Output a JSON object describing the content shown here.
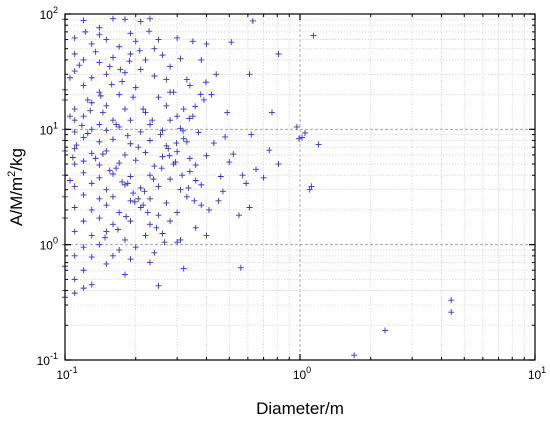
{
  "chart_data": {
    "type": "scatter",
    "title": "",
    "xlabel": "Diameter/m",
    "ylabel_parts": [
      "A/M/m",
      "2",
      "/kg"
    ],
    "xscale": "log",
    "yscale": "log",
    "xlim": [
      0.1,
      10
    ],
    "ylim": [
      0.1,
      100
    ],
    "grid": true,
    "marker": "+",
    "marker_color": "#3333cc",
    "x_ticks": [
      {
        "mantissa": "10",
        "exp": "-1"
      },
      {
        "mantissa": "10",
        "exp": "0"
      },
      {
        "mantissa": "10",
        "exp": "1"
      }
    ],
    "y_ticks": [
      {
        "mantissa": "10",
        "exp": "-1"
      },
      {
        "mantissa": "10",
        "exp": "0"
      },
      {
        "mantissa": "10",
        "exp": "1"
      },
      {
        "mantissa": "10",
        "exp": "2"
      }
    ],
    "points": [
      [
        0.1,
        90
      ],
      [
        0.11,
        62
      ],
      [
        0.12,
        88
      ],
      [
        0.14,
        76
      ],
      [
        0.16,
        91
      ],
      [
        0.18,
        90
      ],
      [
        0.19,
        68
      ],
      [
        0.21,
        86
      ],
      [
        0.23,
        91
      ],
      [
        0.11,
        45
      ],
      [
        0.13,
        55
      ],
      [
        0.15,
        60
      ],
      [
        0.17,
        52
      ],
      [
        0.2,
        58
      ],
      [
        0.25,
        60
      ],
      [
        0.3,
        62
      ],
      [
        0.35,
        58
      ],
      [
        0.4,
        55
      ],
      [
        0.12,
        40
      ],
      [
        0.14,
        38
      ],
      [
        0.16,
        42
      ],
      [
        0.19,
        45
      ],
      [
        0.22,
        40
      ],
      [
        0.26,
        44
      ],
      [
        0.31,
        41
      ],
      [
        0.38,
        40
      ],
      [
        0.51,
        57
      ],
      [
        0.63,
        87
      ],
      [
        1.14,
        65
      ],
      [
        0.11,
        32
      ],
      [
        0.13,
        28
      ],
      [
        0.15,
        30
      ],
      [
        0.18,
        31
      ],
      [
        0.21,
        33
      ],
      [
        0.24,
        29
      ],
      [
        0.28,
        35
      ],
      [
        0.33,
        27
      ],
      [
        0.44,
        30
      ],
      [
        0.81,
        45
      ],
      [
        0.1,
        22
      ],
      [
        0.12,
        24
      ],
      [
        0.14,
        21
      ],
      [
        0.17,
        20
      ],
      [
        0.2,
        23
      ],
      [
        0.25,
        19
      ],
      [
        0.29,
        21
      ],
      [
        0.34,
        24
      ],
      [
        0.42,
        20
      ],
      [
        0.61,
        30
      ],
      [
        0.1,
        18
      ],
      [
        0.11,
        15
      ],
      [
        0.13,
        17
      ],
      [
        0.15,
        16
      ],
      [
        0.18,
        15
      ],
      [
        0.22,
        14
      ],
      [
        0.27,
        16
      ],
      [
        0.32,
        15
      ],
      [
        0.39,
        18
      ],
      [
        0.11,
        12
      ],
      [
        0.12,
        13
      ],
      [
        0.14,
        11
      ],
      [
        0.16,
        12
      ],
      [
        0.19,
        12
      ],
      [
        0.23,
        11
      ],
      [
        0.28,
        12
      ],
      [
        0.35,
        13
      ],
      [
        0.49,
        14
      ],
      [
        0.76,
        14
      ],
      [
        0.1,
        10
      ],
      [
        0.11,
        9.5
      ],
      [
        0.13,
        10
      ],
      [
        0.15,
        9.8
      ],
      [
        0.17,
        10.5
      ],
      [
        0.21,
        9.5
      ],
      [
        0.26,
        9.8
      ],
      [
        0.31,
        10.2
      ],
      [
        0.37,
        9.4
      ],
      [
        0.62,
        9.0
      ],
      [
        0.97,
        10.5
      ],
      [
        1.02,
        8.5
      ],
      [
        0.1,
        8.0
      ],
      [
        0.12,
        8.5
      ],
      [
        0.14,
        7.8
      ],
      [
        0.16,
        8.2
      ],
      [
        0.19,
        7.5
      ],
      [
        0.23,
        8.0
      ],
      [
        0.27,
        7.2
      ],
      [
        0.33,
        7.8
      ],
      [
        0.43,
        7.6
      ],
      [
        0.99,
        8.3
      ],
      [
        1.05,
        9.3
      ],
      [
        1.2,
        7.4
      ],
      [
        0.1,
        6.5
      ],
      [
        0.11,
        6.8
      ],
      [
        0.13,
        6.2
      ],
      [
        0.15,
        6.5
      ],
      [
        0.18,
        6.0
      ],
      [
        0.22,
        6.3
      ],
      [
        0.26,
        5.8
      ],
      [
        0.3,
        6.4
      ],
      [
        0.4,
        5.9
      ],
      [
        0.74,
        6.6
      ],
      [
        0.11,
        5.0
      ],
      [
        0.12,
        5.3
      ],
      [
        0.14,
        4.9
      ],
      [
        0.17,
        5.1
      ],
      [
        0.2,
        5.4
      ],
      [
        0.24,
        4.8
      ],
      [
        0.29,
        5.0
      ],
      [
        0.36,
        4.9
      ],
      [
        0.5,
        5.2
      ],
      [
        0.81,
        5.0
      ],
      [
        0.1,
        4.0
      ],
      [
        0.12,
        4.2
      ],
      [
        0.14,
        3.8
      ],
      [
        0.16,
        4.1
      ],
      [
        0.19,
        3.9
      ],
      [
        0.23,
        4.0
      ],
      [
        0.28,
        3.7
      ],
      [
        0.34,
        4.3
      ],
      [
        0.46,
        3.9
      ],
      [
        0.57,
        4.0
      ],
      [
        0.11,
        3.2
      ],
      [
        0.13,
        3.4
      ],
      [
        0.15,
        3.0
      ],
      [
        0.18,
        3.3
      ],
      [
        0.21,
        3.1
      ],
      [
        0.25,
        3.2
      ],
      [
        0.31,
        3.0
      ],
      [
        0.38,
        3.3
      ],
      [
        0.59,
        3.4
      ],
      [
        1.1,
        3.0
      ],
      [
        1.12,
        3.2
      ],
      [
        0.1,
        2.6
      ],
      [
        0.12,
        2.7
      ],
      [
        0.14,
        2.5
      ],
      [
        0.16,
        2.6
      ],
      [
        0.19,
        2.4
      ],
      [
        0.23,
        2.5
      ],
      [
        0.27,
        2.3
      ],
      [
        0.33,
        2.6
      ],
      [
        0.45,
        2.4
      ],
      [
        0.11,
        2.1
      ],
      [
        0.13,
        2.0
      ],
      [
        0.15,
        2.2
      ],
      [
        0.17,
        1.9
      ],
      [
        0.21,
        2.1
      ],
      [
        0.25,
        1.8
      ],
      [
        0.3,
        1.9
      ],
      [
        0.41,
        2.0
      ],
      [
        0.61,
        2.1
      ],
      [
        0.1,
        1.7
      ],
      [
        0.12,
        1.6
      ],
      [
        0.14,
        1.7
      ],
      [
        0.16,
        1.5
      ],
      [
        0.19,
        1.6
      ],
      [
        0.23,
        1.5
      ],
      [
        0.28,
        1.6
      ],
      [
        0.36,
        1.4
      ],
      [
        0.55,
        1.8
      ],
      [
        0.11,
        1.3
      ],
      [
        0.13,
        1.2
      ],
      [
        0.15,
        1.3
      ],
      [
        0.18,
        1.1
      ],
      [
        0.22,
        1.2
      ],
      [
        0.26,
        1.25
      ],
      [
        0.31,
        1.1
      ],
      [
        0.4,
        1.2
      ],
      [
        0.1,
        1.0
      ],
      [
        0.12,
        0.95
      ],
      [
        0.14,
        1.0
      ],
      [
        0.17,
        0.9
      ],
      [
        0.2,
        0.95
      ],
      [
        0.24,
        0.85
      ],
      [
        0.3,
        1.05
      ],
      [
        0.11,
        0.8
      ],
      [
        0.13,
        0.78
      ],
      [
        0.16,
        0.8
      ],
      [
        0.19,
        0.75
      ],
      [
        0.23,
        0.7
      ],
      [
        0.1,
        0.65
      ],
      [
        0.12,
        0.6
      ],
      [
        0.15,
        0.68
      ],
      [
        0.18,
        0.55
      ],
      [
        0.32,
        0.62
      ],
      [
        0.56,
        0.63
      ],
      [
        0.11,
        0.5
      ],
      [
        0.13,
        0.45
      ],
      [
        0.1,
        0.4
      ],
      [
        0.12,
        0.42
      ],
      [
        0.11,
        0.38
      ],
      [
        0.1,
        0.35
      ],
      [
        0.25,
        0.44
      ],
      [
        4.4,
        0.33
      ],
      [
        4.4,
        0.26
      ],
      [
        2.3,
        0.18
      ],
      [
        1.7,
        0.11
      ],
      [
        0.125,
        18
      ],
      [
        0.145,
        14
      ],
      [
        0.165,
        11
      ],
      [
        0.185,
        8.8
      ],
      [
        0.205,
        7.0
      ],
      [
        0.135,
        5.6
      ],
      [
        0.155,
        4.4
      ],
      [
        0.175,
        3.5
      ],
      [
        0.195,
        2.8
      ],
      [
        0.215,
        2.2
      ],
      [
        0.105,
        28
      ],
      [
        0.115,
        36
      ],
      [
        0.135,
        47
      ],
      [
        0.155,
        35
      ],
      [
        0.175,
        26
      ],
      [
        0.195,
        19
      ],
      [
        0.215,
        15
      ],
      [
        0.235,
        12
      ],
      [
        0.255,
        9.0
      ],
      [
        0.275,
        6.8
      ],
      [
        0.295,
        5.2
      ],
      [
        0.315,
        4.0
      ],
      [
        0.335,
        3.1
      ],
      [
        0.355,
        2.4
      ],
      [
        0.105,
        13
      ],
      [
        0.125,
        9.2
      ],
      [
        0.145,
        6.1
      ],
      [
        0.165,
        4.6
      ],
      [
        0.185,
        3.4
      ],
      [
        0.205,
        2.5
      ],
      [
        0.225,
        1.9
      ],
      [
        0.245,
        1.4
      ],
      [
        0.265,
        1.05
      ],
      [
        0.28,
        21
      ],
      [
        0.27,
        27
      ],
      [
        0.24,
        50
      ],
      [
        0.14,
        66
      ],
      [
        0.122,
        70
      ],
      [
        0.3,
        13
      ],
      [
        0.32,
        8.3
      ],
      [
        0.34,
        5.6
      ],
      [
        0.36,
        3.6
      ],
      [
        0.38,
        2.2
      ],
      [
        0.48,
        8.6
      ],
      [
        0.52,
        6.1
      ],
      [
        0.47,
        2.9
      ],
      [
        0.65,
        4.5
      ],
      [
        0.7,
        3.8
      ],
      [
        0.105,
        3.6
      ],
      [
        0.108,
        5.7
      ],
      [
        0.112,
        7.3
      ],
      [
        0.118,
        10.8
      ],
      [
        0.128,
        14.5
      ],
      [
        0.142,
        19.5
      ],
      [
        0.158,
        24.5
      ],
      [
        0.172,
        33
      ],
      [
        0.188,
        39
      ],
      [
        0.208,
        48
      ],
      [
        0.228,
        71
      ],
      [
        0.148,
        1.15
      ],
      [
        0.168,
        1.35
      ],
      [
        0.182,
        1.75
      ],
      [
        0.198,
        2.35
      ],
      [
        0.218,
        2.9
      ],
      [
        0.238,
        3.7
      ],
      [
        0.258,
        4.6
      ],
      [
        0.278,
        5.9
      ],
      [
        0.298,
        7.6
      ],
      [
        0.318,
        9.7
      ],
      [
        0.338,
        12.4
      ],
      [
        0.358,
        15.8
      ],
      [
        0.378,
        20.1
      ],
      [
        0.398,
        25.6
      ]
    ]
  }
}
